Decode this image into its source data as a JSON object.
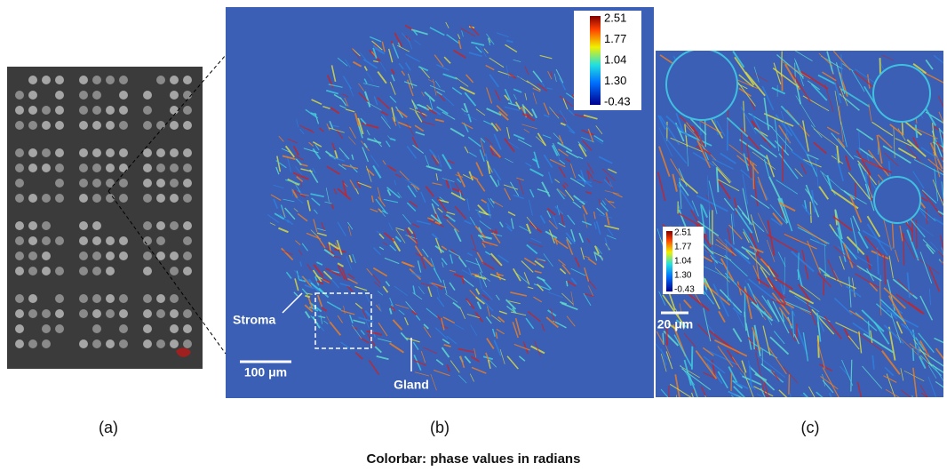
{
  "panels": [
    {
      "label": "(a)"
    },
    {
      "label": "(b)",
      "colorbar": [
        "2.51",
        "1.77",
        "1.04",
        "1.30",
        "-0.43"
      ],
      "annotations": [
        "Stroma",
        "Gland"
      ],
      "scale_bar": "100 μm"
    },
    {
      "label": "(c)",
      "colorbar": [
        "2.51",
        "1.77",
        "1.04",
        "1.30",
        "-0.43"
      ],
      "scale_bar": "20 μm"
    }
  ],
  "caption": "Colorbar: phase values in radians"
}
